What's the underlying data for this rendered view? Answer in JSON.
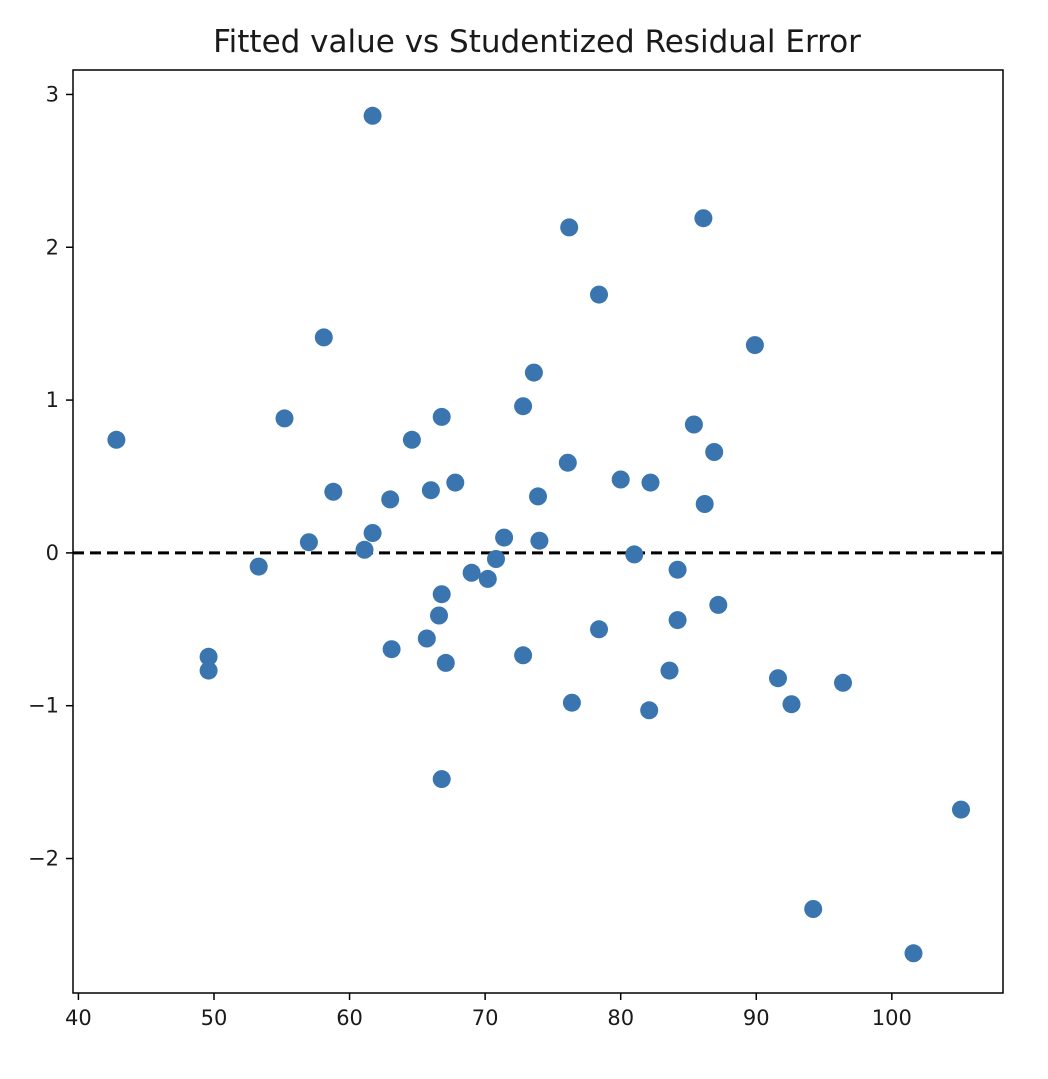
{
  "chart_data": {
    "type": "scatter",
    "title": "Fitted value vs Studentized Residual Error",
    "xlabel": "",
    "ylabel": "",
    "xlim": [
      39.6,
      108.2
    ],
    "ylim": [
      -2.88,
      3.16
    ],
    "x_ticks": [
      {
        "value": 40,
        "label": "40"
      },
      {
        "value": 50,
        "label": "50"
      },
      {
        "value": 60,
        "label": "60"
      },
      {
        "value": 70,
        "label": "70"
      },
      {
        "value": 80,
        "label": "80"
      },
      {
        "value": 90,
        "label": "90"
      },
      {
        "value": 100,
        "label": "100"
      }
    ],
    "y_ticks": [
      {
        "value": 3,
        "label": "3"
      },
      {
        "value": 2,
        "label": "2"
      },
      {
        "value": 1,
        "label": "1"
      },
      {
        "value": 0,
        "label": "0"
      },
      {
        "value": -1,
        "label": "−1"
      },
      {
        "value": -2,
        "label": "−2"
      }
    ],
    "grid": false,
    "reference_line": {
      "y": 0,
      "style": "dashed",
      "color": "#000000"
    },
    "point_color": "#3a75af",
    "series": [
      {
        "points": [
          {
            "x": 42.8,
            "y": 0.74
          },
          {
            "x": 49.6,
            "y": -0.68
          },
          {
            "x": 49.6,
            "y": -0.77
          },
          {
            "x": 53.3,
            "y": -0.09
          },
          {
            "x": 55.2,
            "y": 0.88
          },
          {
            "x": 57.0,
            "y": 0.07
          },
          {
            "x": 58.1,
            "y": 1.41
          },
          {
            "x": 58.8,
            "y": 0.4
          },
          {
            "x": 61.1,
            "y": 0.02
          },
          {
            "x": 61.7,
            "y": 0.13
          },
          {
            "x": 61.7,
            "y": 2.86
          },
          {
            "x": 63.0,
            "y": 0.35
          },
          {
            "x": 63.1,
            "y": -0.63
          },
          {
            "x": 64.6,
            "y": 0.74
          },
          {
            "x": 65.7,
            "y": -0.56
          },
          {
            "x": 66.0,
            "y": 0.41
          },
          {
            "x": 66.6,
            "y": -0.41
          },
          {
            "x": 66.8,
            "y": 0.89
          },
          {
            "x": 66.8,
            "y": -0.27
          },
          {
            "x": 66.8,
            "y": -1.48
          },
          {
            "x": 67.1,
            "y": -0.72
          },
          {
            "x": 67.8,
            "y": 0.46
          },
          {
            "x": 69.0,
            "y": -0.13
          },
          {
            "x": 70.2,
            "y": -0.17
          },
          {
            "x": 70.8,
            "y": -0.04
          },
          {
            "x": 71.4,
            "y": 0.1
          },
          {
            "x": 72.8,
            "y": 0.96
          },
          {
            "x": 72.8,
            "y": -0.67
          },
          {
            "x": 73.6,
            "y": 1.18
          },
          {
            "x": 73.9,
            "y": 0.37
          },
          {
            "x": 74.0,
            "y": 0.08
          },
          {
            "x": 76.1,
            "y": 0.59
          },
          {
            "x": 76.2,
            "y": 2.13
          },
          {
            "x": 76.4,
            "y": -0.98
          },
          {
            "x": 78.4,
            "y": 1.69
          },
          {
            "x": 78.4,
            "y": -0.5
          },
          {
            "x": 80.0,
            "y": 0.48
          },
          {
            "x": 81.0,
            "y": -0.01
          },
          {
            "x": 82.1,
            "y": -1.03
          },
          {
            "x": 82.2,
            "y": 0.46
          },
          {
            "x": 83.6,
            "y": -0.77
          },
          {
            "x": 84.2,
            "y": -0.11
          },
          {
            "x": 84.2,
            "y": -0.44
          },
          {
            "x": 85.4,
            "y": 0.84
          },
          {
            "x": 86.1,
            "y": 2.19
          },
          {
            "x": 86.2,
            "y": 0.32
          },
          {
            "x": 86.9,
            "y": 0.66
          },
          {
            "x": 87.2,
            "y": -0.34
          },
          {
            "x": 89.9,
            "y": 1.36
          },
          {
            "x": 91.6,
            "y": -0.82
          },
          {
            "x": 92.6,
            "y": -0.99
          },
          {
            "x": 94.2,
            "y": -2.33
          },
          {
            "x": 96.4,
            "y": -0.85
          },
          {
            "x": 101.6,
            "y": -2.62
          },
          {
            "x": 105.1,
            "y": -1.68
          }
        ]
      }
    ]
  }
}
